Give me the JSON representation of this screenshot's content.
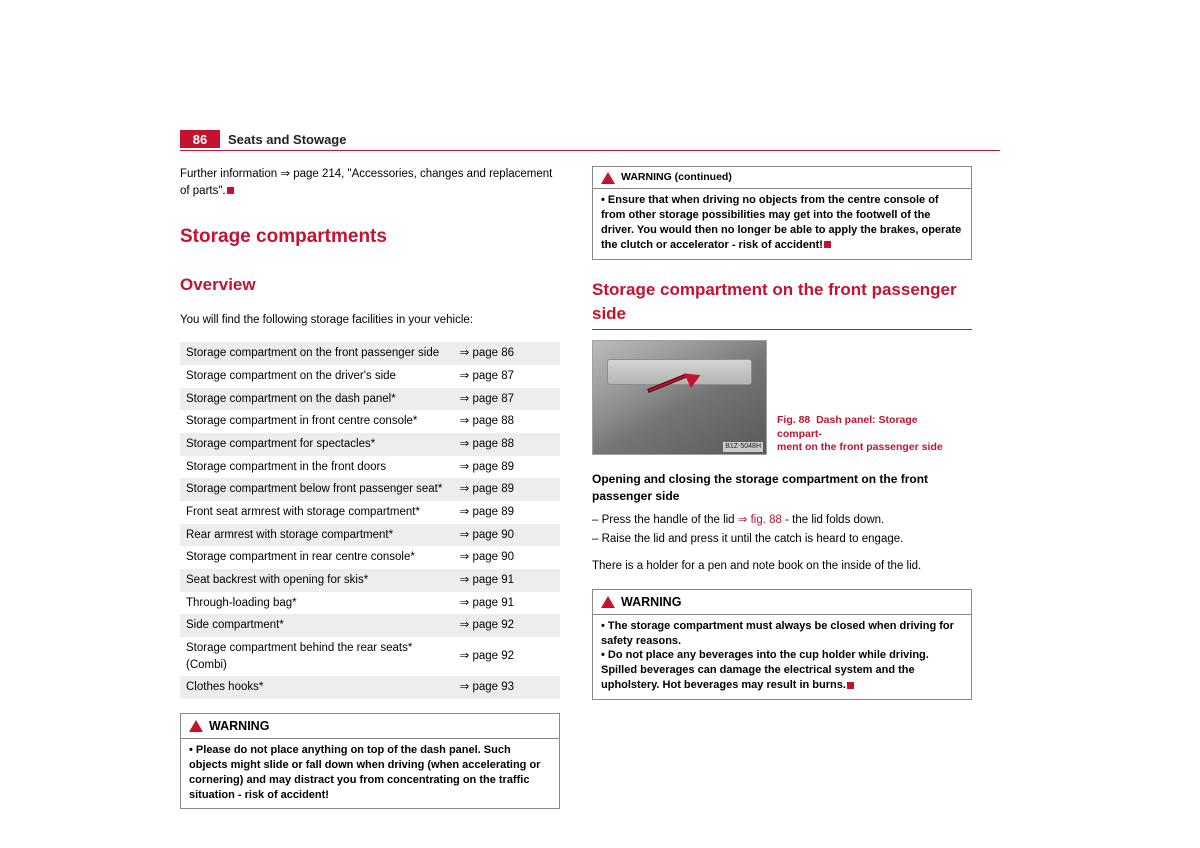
{
  "page_number": "86",
  "chapter": "Seats and Stowage",
  "colors": {
    "accent": "#c4122f",
    "row_stripe": "#eceded",
    "border": "#888888",
    "text": "#000000"
  },
  "left": {
    "further_info_pre": "Further information ",
    "further_info_link": "⇒ page 214, \"Accessories, changes and replacement of parts\".",
    "h1": "Storage compartments",
    "h2": "Overview",
    "intro": "You will find the following storage facilities in your vehicle:",
    "table": [
      {
        "name": "Storage compartment on the front passenger side",
        "page": "⇒ page 86"
      },
      {
        "name": "Storage compartment on the driver's side",
        "page": "⇒ page 87"
      },
      {
        "name": "Storage compartment on the dash panel*",
        "page": "⇒ page 87"
      },
      {
        "name": "Storage compartment in front centre console*",
        "page": "⇒ page 88"
      },
      {
        "name": "Storage compartment for spectacles*",
        "page": "⇒ page 88"
      },
      {
        "name": "Storage compartment in the front doors",
        "page": "⇒ page 89"
      },
      {
        "name": "Storage compartment below front passenger seat*",
        "page": "⇒ page 89"
      },
      {
        "name": "Front seat armrest with storage compartment*",
        "page": "⇒ page 89"
      },
      {
        "name": "Rear armrest with storage compartment*",
        "page": "⇒ page 90"
      },
      {
        "name": "Storage compartment in rear centre console*",
        "page": "⇒ page 90"
      },
      {
        "name": "Seat backrest with opening for skis*",
        "page": "⇒ page 91"
      },
      {
        "name": "Through-loading bag*",
        "page": "⇒ page 91"
      },
      {
        "name": "Side compartment*",
        "page": "⇒ page 92"
      },
      {
        "name": "Storage compartment behind the rear seats* (Combi)",
        "page": "⇒ page 92"
      },
      {
        "name": "Clothes hooks*",
        "page": "⇒ page 93"
      }
    ],
    "warning_title": "WARNING",
    "warning_text": "Please do not place anything on top of the dash panel. Such objects might slide or fall down when driving (when accelerating or cornering) and may distract you from concentrating on the traffic situation - risk of accident!"
  },
  "right": {
    "warning_cont_title": "WARNING (continued)",
    "warning_cont_text": "Ensure that when driving no objects from the centre console of from other storage possibilities may get into the footwell of the driver. You would then no longer be able to apply the brakes, operate the clutch or accelerator - risk of accident!",
    "h2": "Storage compartment on the front passenger side",
    "fig_caption_a": "Fig. 88  Dash panel: Storage compart-",
    "fig_caption_b": "ment on the front passenger side",
    "fig_id": "B1Z-5048H",
    "subheading": "Opening and closing the storage compartment on the front passenger side",
    "step1_pre": "Press the handle of the lid ",
    "step1_ref": "⇒ fig. 88",
    "step1_post": " - the lid folds down.",
    "step2": "Raise the lid and press it until the catch is heard to engage.",
    "note": "There is a holder for a pen and note book on the inside of the lid.",
    "warning_title": "WARNING",
    "warning_item1": "The storage compartment must always be closed when driving for safety reasons.",
    "warning_item2": "Do not place any beverages into the cup holder while driving. Spilled beverages can damage the electrical system and the upholstery. Hot beverages may result in burns."
  }
}
